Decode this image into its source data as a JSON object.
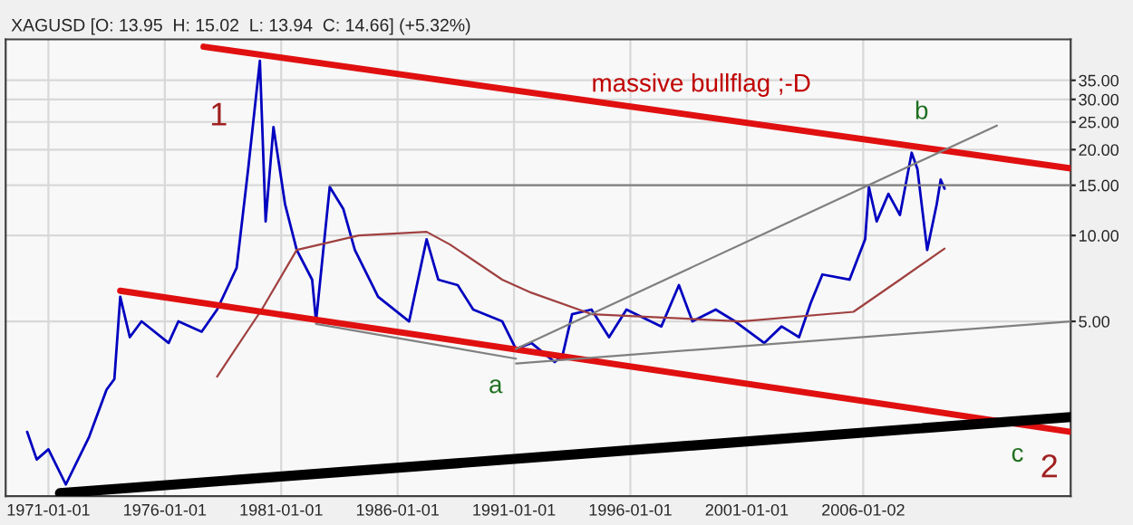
{
  "chart_data": {
    "type": "line",
    "title": "XAGUSD [O: 13.95  H: 15.02  L: 13.94  C: 14.66] (+5.32%)",
    "series": [
      {
        "color": "#0000c0",
        "x": [
          "1970-02",
          "1970-07",
          "1971-01",
          "1971-10",
          "1972-10",
          "1973-07",
          "1973-11",
          "1974-02",
          "1974-07",
          "1975-01",
          "1976-03",
          "1976-08",
          "1977-08",
          "1978-04",
          "1979-02",
          "1979-08",
          "1980-02",
          "1980-05",
          "1980-09",
          "1981-03",
          "1981-09",
          "1982-05",
          "1982-07",
          "1983-02",
          "1983-09",
          "1984-03",
          "1985-03",
          "1986-07",
          "1987-04",
          "1987-10",
          "1988-08",
          "1989-04",
          "1990-07",
          "1991-02",
          "1991-10",
          "1992-10",
          "1993-02",
          "1993-07",
          "1994-05",
          "1995-02",
          "1995-11",
          "1997-05",
          "1998-02",
          "1998-09",
          "1999-09",
          "2000-07",
          "2001-10",
          "2002-07",
          "2003-04",
          "2003-10",
          "2004-04",
          "2005-06",
          "2006-02",
          "2006-04",
          "2006-08",
          "2007-02",
          "2007-08",
          "2008-02",
          "2008-05",
          "2008-10",
          "2009-03",
          "2009-05",
          "2009-07"
        ],
        "values": [
          2.05,
          1.64,
          1.78,
          1.34,
          1.97,
          2.88,
          3.14,
          6.1,
          4.4,
          5.0,
          4.2,
          5.0,
          4.6,
          5.5,
          7.7,
          17.1,
          41,
          11.2,
          24,
          12.9,
          8.9,
          7.0,
          5.0,
          14.8,
          12.4,
          8.9,
          6.1,
          5.0,
          9.7,
          7.0,
          6.7,
          5.5,
          5.0,
          4.0,
          4.2,
          3.6,
          3.8,
          5.3,
          5.5,
          4.4,
          5.5,
          4.8,
          6.7,
          5.0,
          5.5,
          5.0,
          4.2,
          4.8,
          4.4,
          5.8,
          7.3,
          7.0,
          9.7,
          14.8,
          11.2,
          14.0,
          11.8,
          19.5,
          17.1,
          8.9,
          12.9,
          15.7,
          14.6
        ]
      },
      {
        "color": "#a04040",
        "x": [
          "1978-04",
          "1980-03",
          "1981-09",
          "1984-05",
          "1987-04",
          "1988-04",
          "1990-07",
          "1991-10",
          "1994-05",
          "2000-10",
          "2005-08",
          "2007-08",
          "2009-07"
        ],
        "values": [
          3.2,
          5.5,
          8.9,
          10.0,
          10.3,
          9.3,
          7.0,
          6.3,
          5.3,
          5.0,
          5.4,
          7.0,
          9.0
        ]
      },
      {
        "color": "#e01010",
        "x": [
          "1977-09",
          "2014-12"
        ],
        "values": [
          45.9,
          17.2
        ]
      },
      {
        "color": "#e01010",
        "x": [
          "1974-02",
          "2014-12"
        ],
        "values": [
          6.4,
          2.05
        ]
      },
      {
        "color": "#000000",
        "x": [
          "1971-07",
          "2014-12"
        ],
        "values": [
          1.25,
          2.31
        ]
      },
      {
        "color": "#808080",
        "x": [
          "1983-02",
          "2014-12"
        ],
        "values": [
          15.0,
          15.0
        ]
      },
      {
        "color": "#808080",
        "x": [
          "1991-02",
          "2011-10"
        ],
        "values": [
          4.0,
          24.3
        ]
      },
      {
        "color": "#808080",
        "x": [
          "1982-07",
          "1991-02"
        ],
        "values": [
          4.9,
          3.7
        ]
      },
      {
        "color": "#808080",
        "x": [
          "1991-02",
          "2014-12"
        ],
        "values": [
          3.56,
          5.0
        ]
      }
    ],
    "log": true,
    "xlim": [
      "1969-03",
      "2014-12"
    ],
    "xticks": [
      "1971-01-01",
      "1976-01-01",
      "1981-01-01",
      "1986-01-01",
      "1991-01-01",
      "1996-01-01",
      "2001-01-01",
      "2006-01-02"
    ],
    "ylim": [
      1.22,
      48.7
    ],
    "yticks": [
      {
        "value": 5,
        "label": "5.00"
      },
      {
        "value": 10,
        "label": "10.00"
      },
      {
        "value": 15,
        "label": "15.00"
      },
      {
        "value": 20,
        "label": "20.00"
      },
      {
        "value": 25,
        "label": "25.00"
      },
      {
        "value": 30,
        "label": "30.00"
      },
      {
        "value": 35,
        "label": "35.00"
      }
    ],
    "grid": true,
    "annotations": [
      "massive bullflag ;-D",
      "1",
      "a",
      "b",
      "c",
      "2"
    ]
  }
}
